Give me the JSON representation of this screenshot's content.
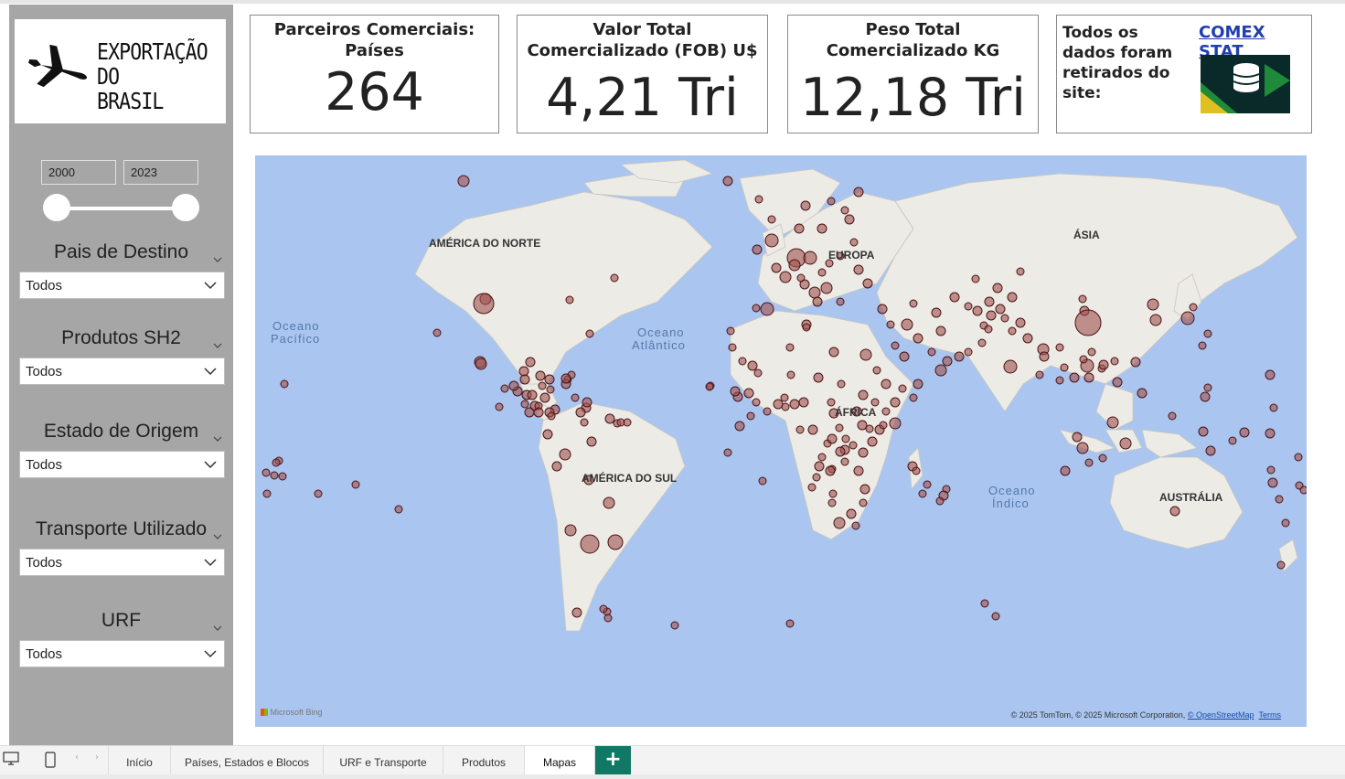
{
  "sidebar": {
    "logo_lines": [
      "EXPORTAÇÃO",
      "DO",
      "BRASIL"
    ],
    "year_start": "2000",
    "year_end": "2023",
    "filters": [
      {
        "title": "Pais de Destino",
        "value": "Todos"
      },
      {
        "title": "Produtos SH2",
        "value": "Todos"
      },
      {
        "title": "Estado de Origem",
        "value": "Todos"
      },
      {
        "title": "Transporte Utilizado",
        "value": "Todos"
      },
      {
        "title": "URF",
        "value": "Todos"
      }
    ]
  },
  "kpis": [
    {
      "title": "Parceiros Comerciais: Países",
      "value": "264"
    },
    {
      "title": "Valor Total Comercializado (FOB) U$",
      "value": "4,21 Tri"
    },
    {
      "title": "Peso Total Comercializado KG",
      "value": "12,18 Tri"
    }
  ],
  "source": {
    "text": "Todos os dados foram retirados do site:",
    "link": "COMEX STAT"
  },
  "map": {
    "regions": {
      "north_america": "AMÉRICA DO NORTE",
      "south_america": "AMÉRICA DO SUL",
      "europe": "EUROPA",
      "africa": "ÁFRICA",
      "asia": "ÁSIA",
      "australia": "AUSTRÁLIA"
    },
    "oceans": {
      "pacific": [
        "Oceano",
        "Pacífico"
      ],
      "atlantic": [
        "Oceano",
        "Atlântico"
      ],
      "indian": [
        "Oceano",
        "Índico"
      ]
    },
    "bing": "Microsoft Bing",
    "attribution": "© 2025 TomTom, © 2025 Microsoft Corporation,",
    "osm": "© OpenStreetMap",
    "terms": "Terms",
    "bubble_color": "#a0504f"
  },
  "tabs": [
    "Início",
    "Países, Estados e Blocos",
    "URF e Transporte",
    "Produtos",
    "Mapas"
  ],
  "active_tab": "Mapas",
  "add_tab": "+"
}
